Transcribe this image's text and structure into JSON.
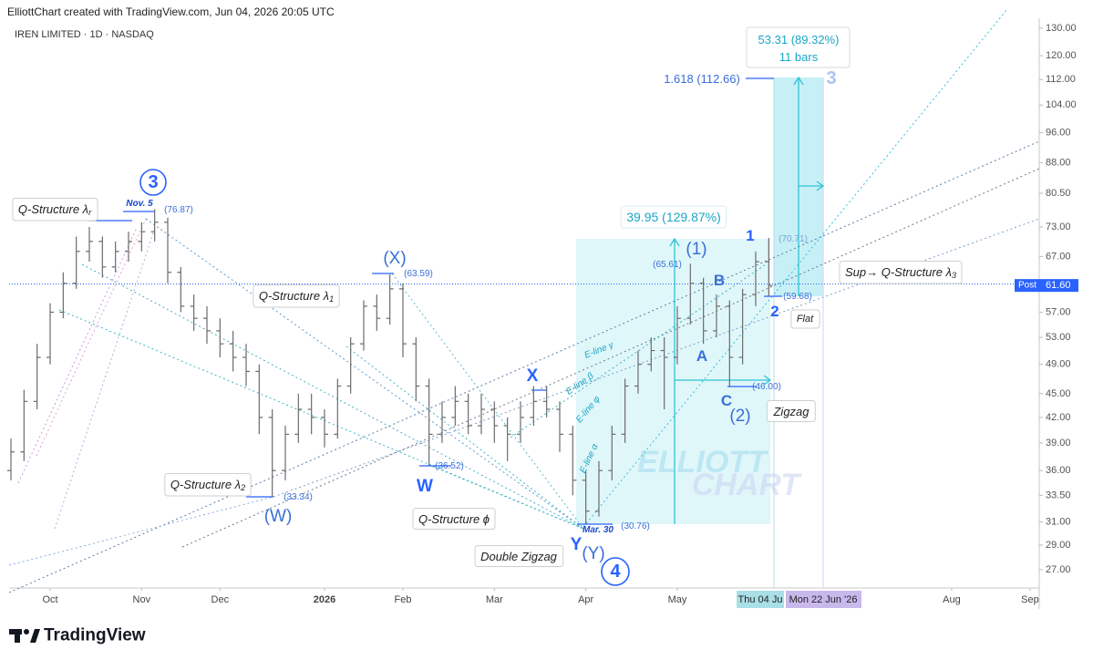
{
  "header": {
    "credit": "ElliottChart created with TradingView.com, Jun 04, 2026 20:05 UTC",
    "symbol": "IREN LIMITED · 1D · NASDAQ"
  },
  "footer": {
    "brand": "TradingView"
  },
  "chart_data": {
    "type": "ohlc",
    "color": "#6b6b6b",
    "log_scale": true,
    "ylim": [
      25.6,
      133.8
    ],
    "yticks": [
      {
        "value": 27,
        "label": "27.00"
      },
      {
        "value": 29,
        "label": "29.00"
      },
      {
        "value": 31,
        "label": "31.00"
      },
      {
        "value": 33.5,
        "label": "33.50"
      },
      {
        "value": 36,
        "label": "36.00"
      },
      {
        "value": 39,
        "label": "39.00"
      },
      {
        "value": 42,
        "label": "42.00"
      },
      {
        "value": 45,
        "label": "45.00"
      },
      {
        "value": 49,
        "label": "49.00"
      },
      {
        "value": 53,
        "label": "53.00"
      },
      {
        "value": 57,
        "label": "57.00"
      },
      {
        "value": 67,
        "label": "67.00"
      },
      {
        "value": 73,
        "label": "73.00"
      },
      {
        "value": 80.5,
        "label": "80.50"
      },
      {
        "value": 88,
        "label": "88.00"
      },
      {
        "value": 96,
        "label": "96.00"
      },
      {
        "value": 104,
        "label": "104.00"
      },
      {
        "value": 112,
        "label": "112.00"
      },
      {
        "value": 120,
        "label": "120.00"
      },
      {
        "value": 130,
        "label": "130.00"
      }
    ],
    "xlim": [
      -0.14,
      78.7
    ],
    "xticks": [
      {
        "value": 3,
        "label": "Oct"
      },
      {
        "value": 10,
        "label": "Nov"
      },
      {
        "value": 16,
        "label": "Dec"
      },
      {
        "value": 24,
        "label": "2026"
      },
      {
        "value": 30,
        "label": "Feb"
      },
      {
        "value": 37,
        "label": "Mar"
      },
      {
        "value": 44,
        "label": "Apr"
      },
      {
        "value": 51,
        "label": "May"
      },
      {
        "value": 72,
        "label": "Aug"
      },
      {
        "value": 78,
        "label": "Sep"
      }
    ],
    "open": [
      36,
      38,
      44,
      50,
      57,
      62,
      68,
      70,
      65,
      68,
      70,
      72,
      74,
      64,
      58,
      56,
      54,
      52,
      50,
      48,
      42,
      36,
      40,
      43,
      42,
      40,
      46,
      52,
      58,
      56,
      61,
      52,
      46,
      40,
      42,
      44,
      41,
      43,
      41,
      40,
      42,
      44,
      43,
      40,
      35,
      32,
      36,
      40,
      46,
      49,
      51,
      50,
      56,
      62,
      54,
      58,
      50,
      60,
      66
    ],
    "high": [
      39.5,
      45.5,
      52,
      58.5,
      64,
      71,
      73,
      71,
      70,
      72,
      74,
      76.87,
      75,
      65,
      60,
      58,
      56,
      54,
      52,
      49,
      43,
      41,
      45,
      45,
      43,
      47,
      53,
      59,
      60,
      63.59,
      62,
      53,
      47,
      44,
      46,
      45,
      45,
      44,
      42,
      44,
      46,
      46,
      44,
      41,
      36,
      37,
      41,
      47,
      51,
      53,
      53,
      58,
      65.61,
      63,
      60,
      59,
      61,
      68,
      70.71
    ],
    "low": [
      35,
      37,
      43,
      49,
      56,
      61,
      66,
      63,
      64,
      66,
      68,
      70,
      62,
      57,
      54,
      52,
      50,
      48,
      46,
      40,
      33.34,
      35,
      39,
      40,
      38.5,
      39.5,
      45,
      51,
      54,
      55,
      50,
      44,
      36.52,
      39,
      41,
      40,
      40,
      39,
      37,
      39,
      41,
      42,
      38,
      33.5,
      30.76,
      31.5,
      35,
      39,
      45,
      48,
      43,
      49,
      55,
      52,
      53,
      46,
      49,
      58,
      59.68
    ],
    "close": [
      38,
      44,
      50,
      57,
      62,
      68,
      70,
      65,
      68,
      70,
      72,
      74,
      64,
      58,
      56,
      54,
      52,
      50,
      48,
      42,
      36,
      40,
      43,
      42,
      40,
      46,
      52,
      58,
      56,
      61,
      52,
      46,
      40,
      42,
      44,
      41,
      43,
      41,
      40,
      42,
      44,
      43,
      40,
      35,
      32,
      36,
      40,
      46,
      49,
      51,
      50,
      56,
      62,
      54,
      58,
      50,
      60,
      66,
      61.6
    ],
    "price_line": 61.86,
    "post_label": "Post",
    "post_price": {
      "value": 61.6,
      "label": "61.60"
    },
    "time_badges": [
      "Thu 04 Ju",
      "Mon 22 Jun '26"
    ],
    "annotations": [
      {
        "text": "3"
      },
      {
        "text": "Nov. 5"
      },
      {
        "text": "(76.87)"
      },
      {
        "text": "Q-Structure λ",
        "sub": "r"
      },
      {
        "text": "(X)"
      },
      {
        "text": "(63.59)"
      },
      {
        "text": "Q-Structure λ",
        "sub": "1"
      },
      {
        "text": "X"
      },
      {
        "text": "W"
      },
      {
        "text": "(36.52)"
      },
      {
        "text": "Q-Structure λ",
        "sub": "2"
      },
      {
        "text": "(33.34)"
      },
      {
        "text": "(W)"
      },
      {
        "text": "Q-Structure ϕ"
      },
      {
        "text": "Mar. 30"
      },
      {
        "text": "(30.76)"
      },
      {
        "text": "Y"
      },
      {
        "text": "(Y)"
      },
      {
        "text": "4"
      },
      {
        "text": "Double Zigzag"
      },
      {
        "text": "39.95 (129.87%)"
      },
      {
        "text": "(1)"
      },
      {
        "text": "(65.61)"
      },
      {
        "text": "B"
      },
      {
        "text": "A"
      },
      {
        "text": "C"
      },
      {
        "text": "(2)"
      },
      {
        "text": "(46.00)"
      },
      {
        "text": "Zigzag"
      },
      {
        "text": "1"
      },
      {
        "text": "(70.71)"
      },
      {
        "text": "2"
      },
      {
        "text": "(59.68)"
      },
      {
        "text": "Flat"
      },
      {
        "text": "Sup→ Q-Structure λ",
        "sub": "3"
      },
      {
        "text": "53.31 (89.32%)"
      },
      {
        "text": "11 bars"
      },
      {
        "text": "1.618 (112.66)"
      },
      {
        "text": "3"
      },
      {
        "text": "E-line γ"
      },
      {
        "text": "E-line β"
      },
      {
        "text": "E-line φ"
      },
      {
        "text": "E-line α"
      },
      {
        "text": "ELLIOTT"
      },
      {
        "text": "CHART"
      }
    ]
  }
}
